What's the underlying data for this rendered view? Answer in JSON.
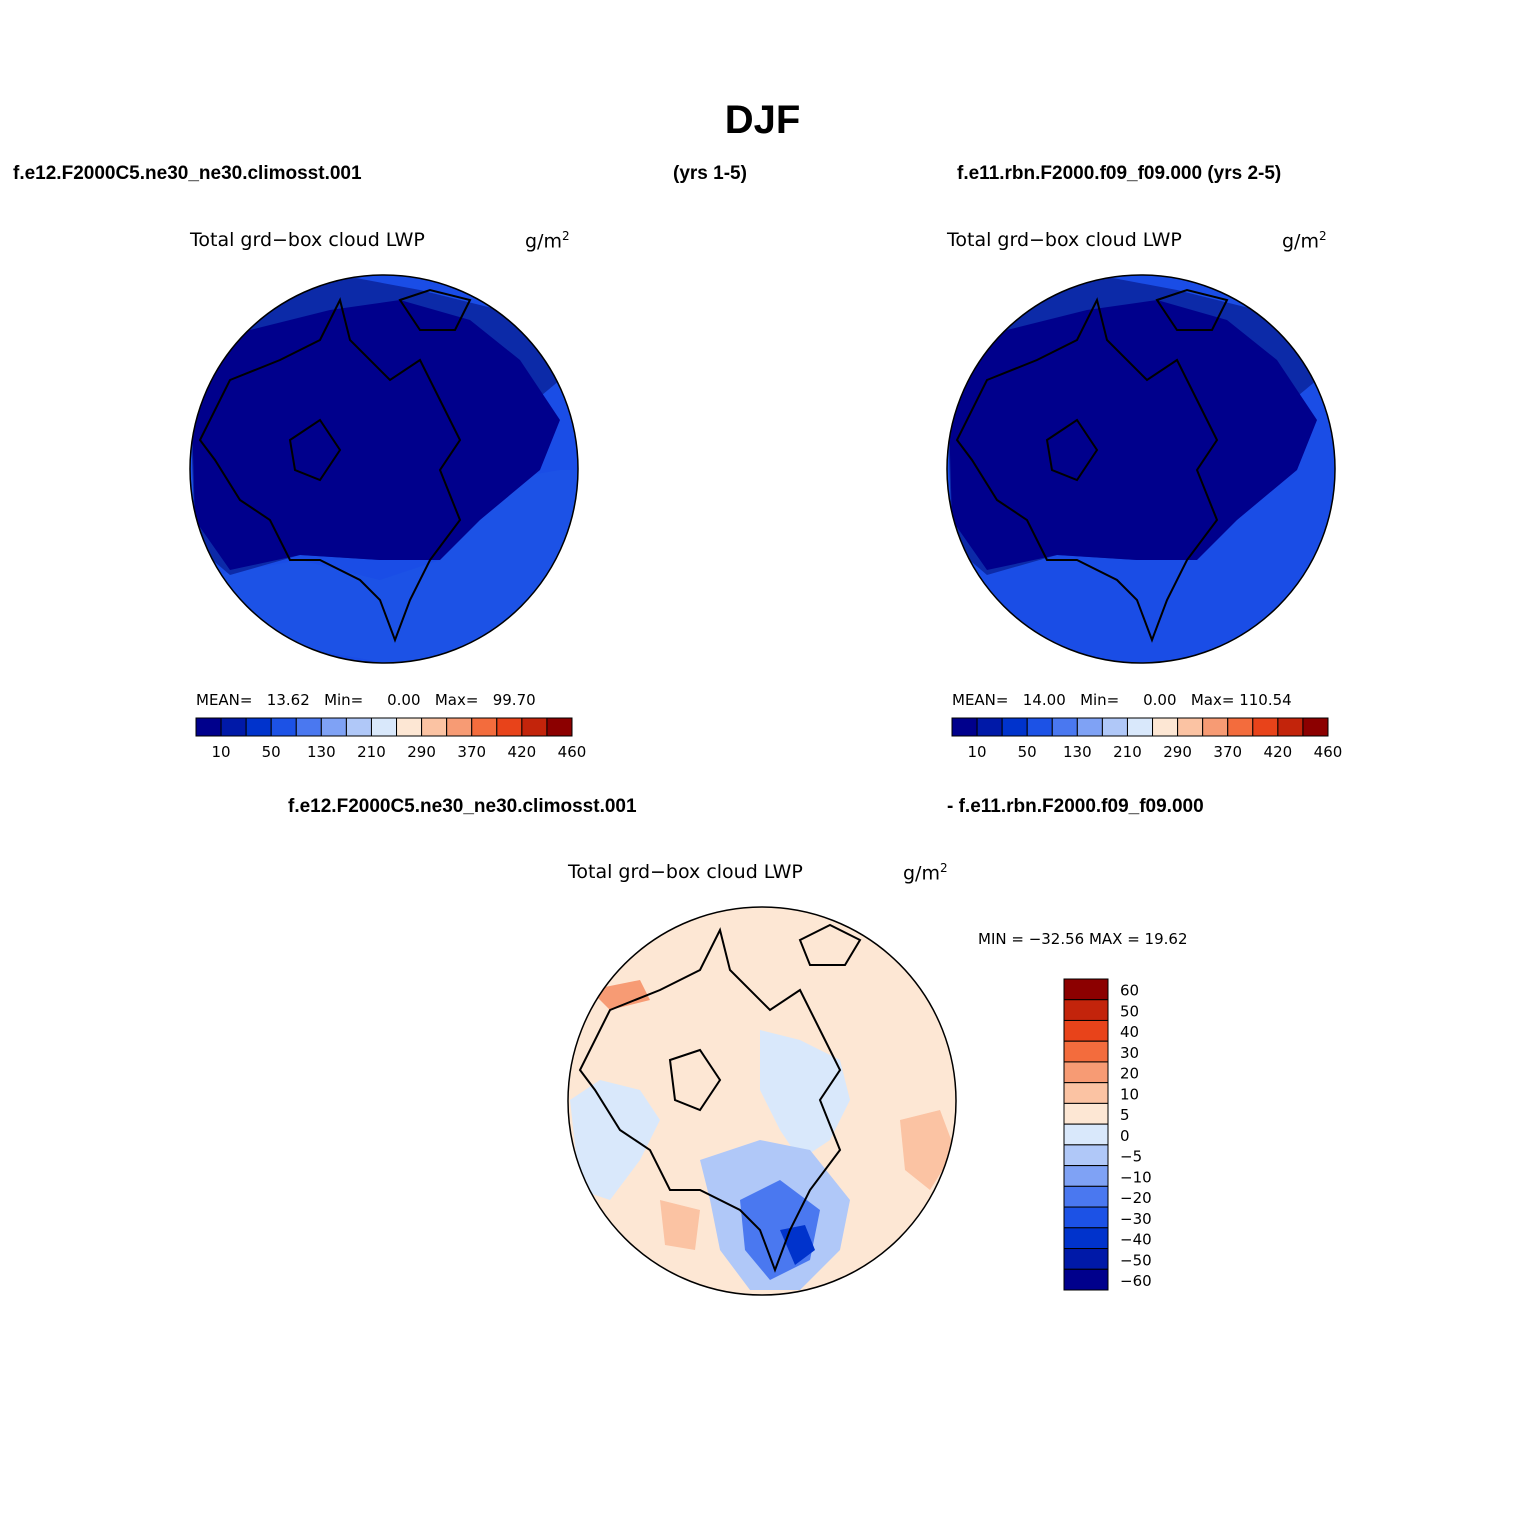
{
  "page_title": "DJF",
  "panels": {
    "top_left": {
      "case_name": "f.e12.F2000C5.ne30_ne30.climosst.001",
      "years": "(yrs 1-5)",
      "field": "Total grd−box cloud LWP",
      "units_base": "g/m",
      "units_exp": "2",
      "mean_label": "MEAN=",
      "mean_value": "13.62",
      "min_label": "Min=",
      "min_value": "0.00",
      "max_label": "Max=",
      "max_value": "99.70"
    },
    "top_right": {
      "case_name": "f.e11.rbn.F2000.f09_f09.000 (yrs 2-5)",
      "field": "Total grd−box cloud LWP",
      "units_base": "g/m",
      "units_exp": "2",
      "mean_label": "MEAN=",
      "mean_value": "14.00",
      "min_label": "Min=",
      "min_value": "0.00",
      "max_label": "Max=",
      "max_value": "110.54"
    },
    "bottom": {
      "case_a": "f.e12.F2000C5.ne30_ne30.climosst.001",
      "case_b": "- f.e11.rbn.F2000.f09_f09.000",
      "field": "Total grd−box cloud LWP",
      "units_base": "g/m",
      "units_exp": "2",
      "minmax_text": "MIN = −32.56 MAX =  19.62"
    }
  },
  "colorbars": {
    "absolute": {
      "colors": [
        "#00008c",
        "#0019a8",
        "#0033cc",
        "#1c52e6",
        "#4a78f0",
        "#7fa2f5",
        "#b0c8f8",
        "#d9e8fb",
        "#fde7d4",
        "#fbc3a3",
        "#f79b74",
        "#f36c3d",
        "#e8431a",
        "#c3240b",
        "#8c0000"
      ],
      "tick_labels": [
        "10",
        "50",
        "130",
        "210",
        "290",
        "370",
        "420",
        "460"
      ]
    },
    "difference": {
      "colors": [
        "#00008c",
        "#0019a8",
        "#0033cc",
        "#1c52e6",
        "#4a78f0",
        "#7fa2f5",
        "#b0c8f8",
        "#d9e8fb",
        "#fde7d4",
        "#fbc3a3",
        "#f79b74",
        "#f36c3d",
        "#e8431a",
        "#c3240b",
        "#8c0000"
      ],
      "tick_labels": [
        "60",
        "50",
        "40",
        "30",
        "20",
        "10",
        "5",
        "0",
        "−5",
        "−10",
        "−20",
        "−30",
        "−40",
        "−50",
        "−60"
      ]
    }
  }
}
